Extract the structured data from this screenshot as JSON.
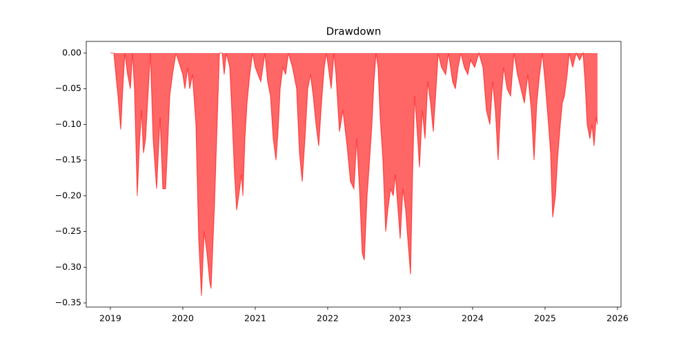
{
  "chart_data": {
    "type": "area",
    "title": "Drawdown",
    "color": "#ff0000",
    "fill_opacity": 0.6,
    "x": [
      2019.0,
      2019.048,
      2019.076,
      2019.105,
      2019.143,
      2019.171,
      2019.2,
      2019.238,
      2019.276,
      2019.305,
      2019.333,
      2019.371,
      2019.4,
      2019.429,
      2019.457,
      2019.486,
      2019.524,
      2019.552,
      2019.59,
      2019.638,
      2019.686,
      2019.724,
      2019.762,
      2019.79,
      2019.819,
      2019.857,
      2019.905,
      2020.0,
      2020.029,
      2020.067,
      2020.095,
      2020.133,
      2020.181,
      2020.219,
      2020.257,
      2020.295,
      2020.333,
      2020.371,
      2020.39,
      2020.41,
      2020.438,
      2020.457,
      2020.486,
      2020.505,
      2020.543,
      2020.571,
      2020.6,
      2020.648,
      2020.676,
      2020.714,
      2020.743,
      2020.771,
      2020.81,
      2020.829,
      2020.857,
      2020.886,
      2020.924,
      2020.962,
      2021.0,
      2021.038,
      2021.076,
      2021.105,
      2021.133,
      2021.171,
      2021.21,
      2021.248,
      2021.286,
      2021.314,
      2021.343,
      2021.381,
      2021.419,
      2021.457,
      2021.514,
      2021.571,
      2021.61,
      2021.648,
      2021.686,
      2021.724,
      2021.762,
      2021.8,
      2021.838,
      2021.876,
      2021.914,
      2021.952,
      2021.981,
      2022.01,
      2022.048,
      2022.086,
      2022.114,
      2022.162,
      2022.21,
      2022.267,
      2022.314,
      2022.362,
      2022.4,
      2022.438,
      2022.476,
      2022.505,
      2022.543,
      2022.571,
      2022.61,
      2022.638,
      2022.667,
      2022.695,
      2022.724,
      2022.762,
      2022.8,
      2022.829,
      2022.867,
      2022.905,
      2022.933,
      2022.971,
      2023.0,
      2023.038,
      2023.076,
      2023.105,
      2023.143,
      2023.171,
      2023.2,
      2023.229,
      2023.267,
      2023.305,
      2023.343,
      2023.381,
      2023.419,
      2023.457,
      2023.495,
      2023.524,
      2023.571,
      2023.629,
      2023.667,
      2023.724,
      2023.762,
      2023.8,
      2023.838,
      2023.886,
      2023.933,
      2023.971,
      2024.029,
      2024.086,
      2024.143,
      2024.19,
      2024.238,
      2024.276,
      2024.314,
      2024.352,
      2024.39,
      2024.429,
      2024.476,
      2024.524,
      2024.571,
      2024.619,
      2024.667,
      2024.714,
      2024.762,
      2024.81,
      2024.848,
      2024.886,
      2024.924,
      2024.962,
      2025.0,
      2025.048,
      2025.076,
      2025.105,
      2025.143,
      2025.171,
      2025.21,
      2025.238,
      2025.267,
      2025.305,
      2025.333,
      2025.381,
      2025.429,
      2025.476,
      2025.524,
      2025.552,
      2025.581,
      2025.619,
      2025.648,
      2025.676,
      2025.705,
      2025.724
    ],
    "values": [
      0,
      0,
      -0.03,
      -0.06,
      -0.107,
      -0.05,
      0,
      -0.03,
      -0.05,
      0,
      -0.05,
      -0.2,
      -0.13,
      -0.08,
      -0.14,
      -0.12,
      -0.05,
      0,
      -0.12,
      -0.19,
      -0.09,
      -0.19,
      -0.19,
      -0.13,
      -0.06,
      -0.03,
      0,
      -0.03,
      -0.05,
      -0.02,
      -0.05,
      -0.03,
      -0.1,
      -0.26,
      -0.34,
      -0.25,
      -0.28,
      -0.32,
      -0.33,
      -0.28,
      -0.21,
      -0.15,
      -0.06,
      0,
      0,
      -0.03,
      0,
      -0.02,
      -0.08,
      -0.17,
      -0.22,
      -0.2,
      -0.17,
      -0.2,
      -0.12,
      -0.07,
      -0.03,
      0,
      -0.02,
      -0.03,
      -0.04,
      -0.02,
      0,
      -0.04,
      -0.06,
      -0.12,
      -0.15,
      -0.11,
      -0.05,
      -0.02,
      -0.03,
      0,
      -0.02,
      -0.05,
      -0.14,
      -0.18,
      -0.12,
      -0.05,
      -0.03,
      -0.06,
      -0.1,
      -0.13,
      -0.07,
      -0.02,
      0,
      -0.02,
      -0.05,
      0,
      -0.03,
      -0.11,
      -0.08,
      -0.13,
      -0.18,
      -0.19,
      -0.12,
      -0.19,
      -0.28,
      -0.29,
      -0.2,
      -0.16,
      -0.1,
      -0.04,
      0,
      -0.02,
      -0.09,
      -0.15,
      -0.25,
      -0.22,
      -0.19,
      -0.2,
      -0.17,
      -0.22,
      -0.26,
      -0.19,
      -0.22,
      -0.26,
      -0.31,
      -0.17,
      -0.06,
      -0.1,
      -0.16,
      -0.08,
      -0.12,
      -0.04,
      -0.07,
      -0.11,
      -0.05,
      0,
      -0.02,
      -0.03,
      0,
      -0.04,
      -0.05,
      -0.02,
      0,
      -0.02,
      -0.03,
      -0.01,
      -0.02,
      0,
      -0.02,
      -0.08,
      -0.1,
      -0.04,
      -0.08,
      -0.15,
      -0.07,
      -0.02,
      -0.05,
      -0.06,
      0,
      -0.03,
      -0.05,
      -0.07,
      -0.03,
      -0.08,
      -0.15,
      -0.07,
      -0.03,
      0,
      -0.04,
      -0.1,
      -0.14,
      -0.23,
      -0.2,
      -0.15,
      -0.1,
      -0.07,
      -0.06,
      -0.03,
      0,
      -0.02,
      0,
      -0.01,
      0,
      -0.04,
      -0.1,
      -0.12,
      -0.1,
      -0.13,
      -0.09,
      -0.1
    ],
    "xlim": [
      2018.667,
      2026.048
    ],
    "xticks": [
      2019,
      2020,
      2021,
      2022,
      2023,
      2024,
      2025,
      2026
    ],
    "ylim": [
      -0.3558,
      0.0164
    ],
    "yticks": [
      {
        "value": 0,
        "label": "0.00"
      },
      {
        "value": -0.05,
        "label": "−0.05"
      },
      {
        "value": -0.1,
        "label": "−0.10"
      },
      {
        "value": -0.15,
        "label": "−0.15"
      },
      {
        "value": -0.2,
        "label": "−0.20"
      },
      {
        "value": -0.25,
        "label": "−0.25"
      },
      {
        "value": -0.3,
        "label": "−0.30"
      },
      {
        "value": -0.35,
        "label": "−0.35"
      }
    ],
    "grid": false
  }
}
